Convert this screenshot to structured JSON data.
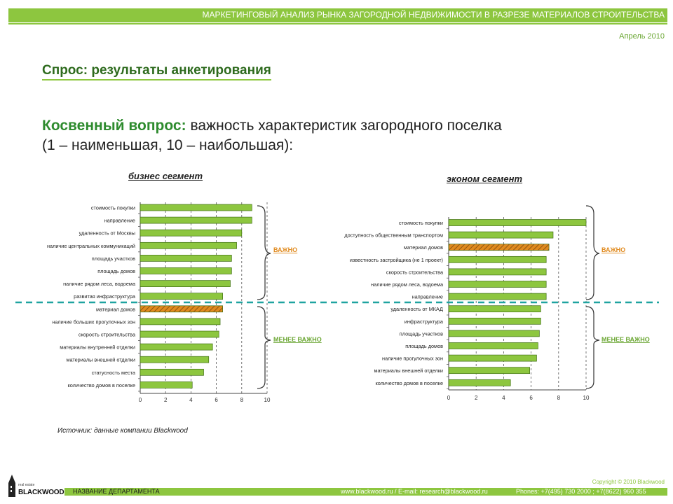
{
  "header": {
    "title": "МАРКЕТИНГОВЫЙ АНАЛИЗ РЫНКА ЗАГОРОДНОЙ НЕДВИЖИМОСТИ В РАЗРЕЗЕ МАТЕРИАЛОВ СТРОИТЕЛЬСТВА",
    "date": "Апрель 2010"
  },
  "section_title": "Спрос: результаты анкетирования",
  "question": {
    "lead": "Косвенный вопрос:",
    "text": " важность характеристик загородного поселка",
    "scale": "(1 – наименьшая, 10 – наибольшая):"
  },
  "colors": {
    "accent": "#8dc63f",
    "bar": "#8dc63f",
    "highlight": "#e08a1e",
    "divider": "#1fa3a0"
  },
  "chart_data": [
    {
      "type": "bar",
      "orientation": "horizontal",
      "title": "бизнес сегмент",
      "categories": [
        "стоимость покупки",
        "направление",
        "удаленность от Москвы",
        "наличие центральных коммуникаций",
        "площадь участков",
        "площадь домов",
        "наличие рядом леса, водоема",
        "развитая инфраструктура",
        "материал домов",
        "наличие больших прогулочных зон",
        "скорость строительства",
        "материалы внутренней отделки",
        "материалы внешней отделки",
        "статусность места",
        "количество домов в поселке"
      ],
      "values": [
        8.8,
        8.8,
        8.0,
        7.6,
        7.2,
        7.2,
        7.1,
        6.5,
        6.5,
        6.3,
        6.2,
        5.7,
        5.4,
        5.0,
        4.1
      ],
      "highlight_category": "материал домов",
      "xlim": [
        0,
        10
      ],
      "xticks": [
        "0",
        "2",
        "4",
        "6",
        "8",
        "10"
      ],
      "grid": true,
      "groups": {
        "important": "ВАЖНО",
        "less_important": "МЕНЕЕ ВАЖНО"
      }
    },
    {
      "type": "bar",
      "orientation": "horizontal",
      "title": "эконом сегмент",
      "categories": [
        "стоимость покупки",
        "доступность общественным транспортом",
        "материал домов",
        "известность застройщика (не 1 проект)",
        "скорость строительства",
        "наличие рядом леса, водоема",
        "направление",
        "удаленность от МКАД",
        "инфраструктура",
        "площадь участков",
        "площадь домов",
        "наличие прогулочных зон",
        "материалы внешней отделки",
        "количество домов в поселке"
      ],
      "values": [
        10.0,
        7.6,
        7.3,
        7.1,
        7.1,
        7.1,
        7.1,
        6.7,
        6.7,
        6.6,
        6.5,
        6.4,
        5.9,
        4.5
      ],
      "highlight_category": "материал домов",
      "xlim": [
        0,
        10
      ],
      "xticks": [
        "0",
        "2",
        "4",
        "6",
        "8",
        "10"
      ],
      "grid": true,
      "groups": {
        "important": "ВАЖНО",
        "less_important": "МЕНЕЕ ВАЖНО"
      }
    }
  ],
  "source": "Источник: данные компании Blackwood",
  "footer": {
    "copyright": "Copyright © 2010 Blackwood",
    "department": "НАЗВАНИЕ ДЕПАРТАМЕНТА",
    "web": "www.blackwood.ru / E-mail: research@blackwood.ru",
    "phones": "Phones: +7(495) 730 2000 ; +7(8622) 960 355",
    "logo_text": "BLACKWOOD",
    "logo_sub": "real estate"
  }
}
